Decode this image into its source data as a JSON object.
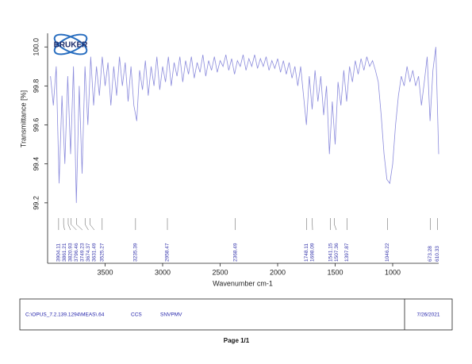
{
  "logo": "BRUKER",
  "chart_data": {
    "type": "line",
    "xlabel": "Wavenumber cm-1",
    "ylabel": "Transmittance [%]",
    "color": "#8b8bdc",
    "xlim": [
      4000,
      600
    ],
    "xticks": [
      3500,
      3000,
      2500,
      2000,
      1500,
      1000
    ],
    "ylim": [
      98.89,
      100.07
    ],
    "yticks": [
      99.2,
      99.4,
      99.6,
      99.8,
      {
        "value": 100,
        "label": "100.0"
      }
    ],
    "x": [
      3975,
      3950,
      3925,
      3900,
      3875,
      3850,
      3825,
      3800,
      3775,
      3750,
      3725,
      3700,
      3675,
      3650,
      3625,
      3600,
      3575,
      3550,
      3525,
      3500,
      3475,
      3450,
      3425,
      3400,
      3375,
      3350,
      3325,
      3300,
      3275,
      3250,
      3225,
      3200,
      3175,
      3150,
      3125,
      3100,
      3075,
      3050,
      3025,
      3000,
      2975,
      2950,
      2925,
      2900,
      2875,
      2850,
      2825,
      2800,
      2775,
      2750,
      2725,
      2700,
      2675,
      2650,
      2625,
      2600,
      2575,
      2550,
      2525,
      2500,
      2475,
      2450,
      2425,
      2400,
      2375,
      2350,
      2325,
      2300,
      2275,
      2250,
      2225,
      2200,
      2175,
      2150,
      2125,
      2100,
      2075,
      2050,
      2025,
      2000,
      1975,
      1950,
      1925,
      1900,
      1875,
      1850,
      1825,
      1800,
      1775,
      1750,
      1725,
      1700,
      1675,
      1650,
      1625,
      1600,
      1575,
      1550,
      1525,
      1500,
      1475,
      1450,
      1425,
      1400,
      1375,
      1350,
      1325,
      1300,
      1275,
      1250,
      1225,
      1200,
      1175,
      1150,
      1125,
      1100,
      1075,
      1050,
      1025,
      1000,
      975,
      950,
      925,
      900,
      875,
      850,
      825,
      800,
      775,
      750,
      725,
      700,
      675,
      650,
      625,
      600
    ],
    "values": [
      99.85,
      99.7,
      99.9,
      99.3,
      99.75,
      99.4,
      99.85,
      99.45,
      99.9,
      99.2,
      99.8,
      99.35,
      99.9,
      99.6,
      99.95,
      99.7,
      99.9,
      99.75,
      99.95,
      99.8,
      99.92,
      99.7,
      99.9,
      99.75,
      99.95,
      99.8,
      99.92,
      99.72,
      99.9,
      99.7,
      99.62,
      99.88,
      99.78,
      99.93,
      99.75,
      99.9,
      99.8,
      99.95,
      99.78,
      99.9,
      99.82,
      99.95,
      99.8,
      99.92,
      99.85,
      99.95,
      99.82,
      99.93,
      99.86,
      99.95,
      99.84,
      99.92,
      99.87,
      99.96,
      99.85,
      99.93,
      99.88,
      99.95,
      99.87,
      99.93,
      99.9,
      99.96,
      99.88,
      99.94,
      99.86,
      99.93,
      99.9,
      99.96,
      99.88,
      99.94,
      99.9,
      99.96,
      99.89,
      99.94,
      99.9,
      99.95,
      99.88,
      99.93,
      99.89,
      99.94,
      99.87,
      99.93,
      99.86,
      99.92,
      99.84,
      99.9,
      99.8,
      99.9,
      99.75,
      99.6,
      99.85,
      99.68,
      99.88,
      99.72,
      99.85,
      99.65,
      99.8,
      99.45,
      99.72,
      99.5,
      99.82,
      99.7,
      99.88,
      99.72,
      99.9,
      99.82,
      99.93,
      99.86,
      99.94,
      99.88,
      99.95,
      99.9,
      99.93,
      99.88,
      99.82,
      99.65,
      99.45,
      99.32,
      99.3,
      99.4,
      99.6,
      99.75,
      99.85,
      99.8,
      99.9,
      99.82,
      99.88,
      99.8,
      99.85,
      99.7,
      99.82,
      99.95,
      99.62,
      99.88,
      100.0,
      99.45
    ],
    "peak_labels": [
      3904.11,
      3861.21,
      3820.93,
      3796.46,
      3749.23,
      3674.37,
      3631.49,
      3525.27,
      3235.39,
      2958.47,
      2368.49,
      1748.11,
      1698.09,
      1541.15,
      1507.36,
      1397.87,
      1046.22,
      673.28,
      610.33
    ]
  },
  "footer": {
    "path": "C:\\OPUS_7.2.139.1294\\MEAS\\.64",
    "code": "CCS",
    "sample": "SNVPMV",
    "date": "7/26/2021"
  },
  "page": "Page 1/1"
}
